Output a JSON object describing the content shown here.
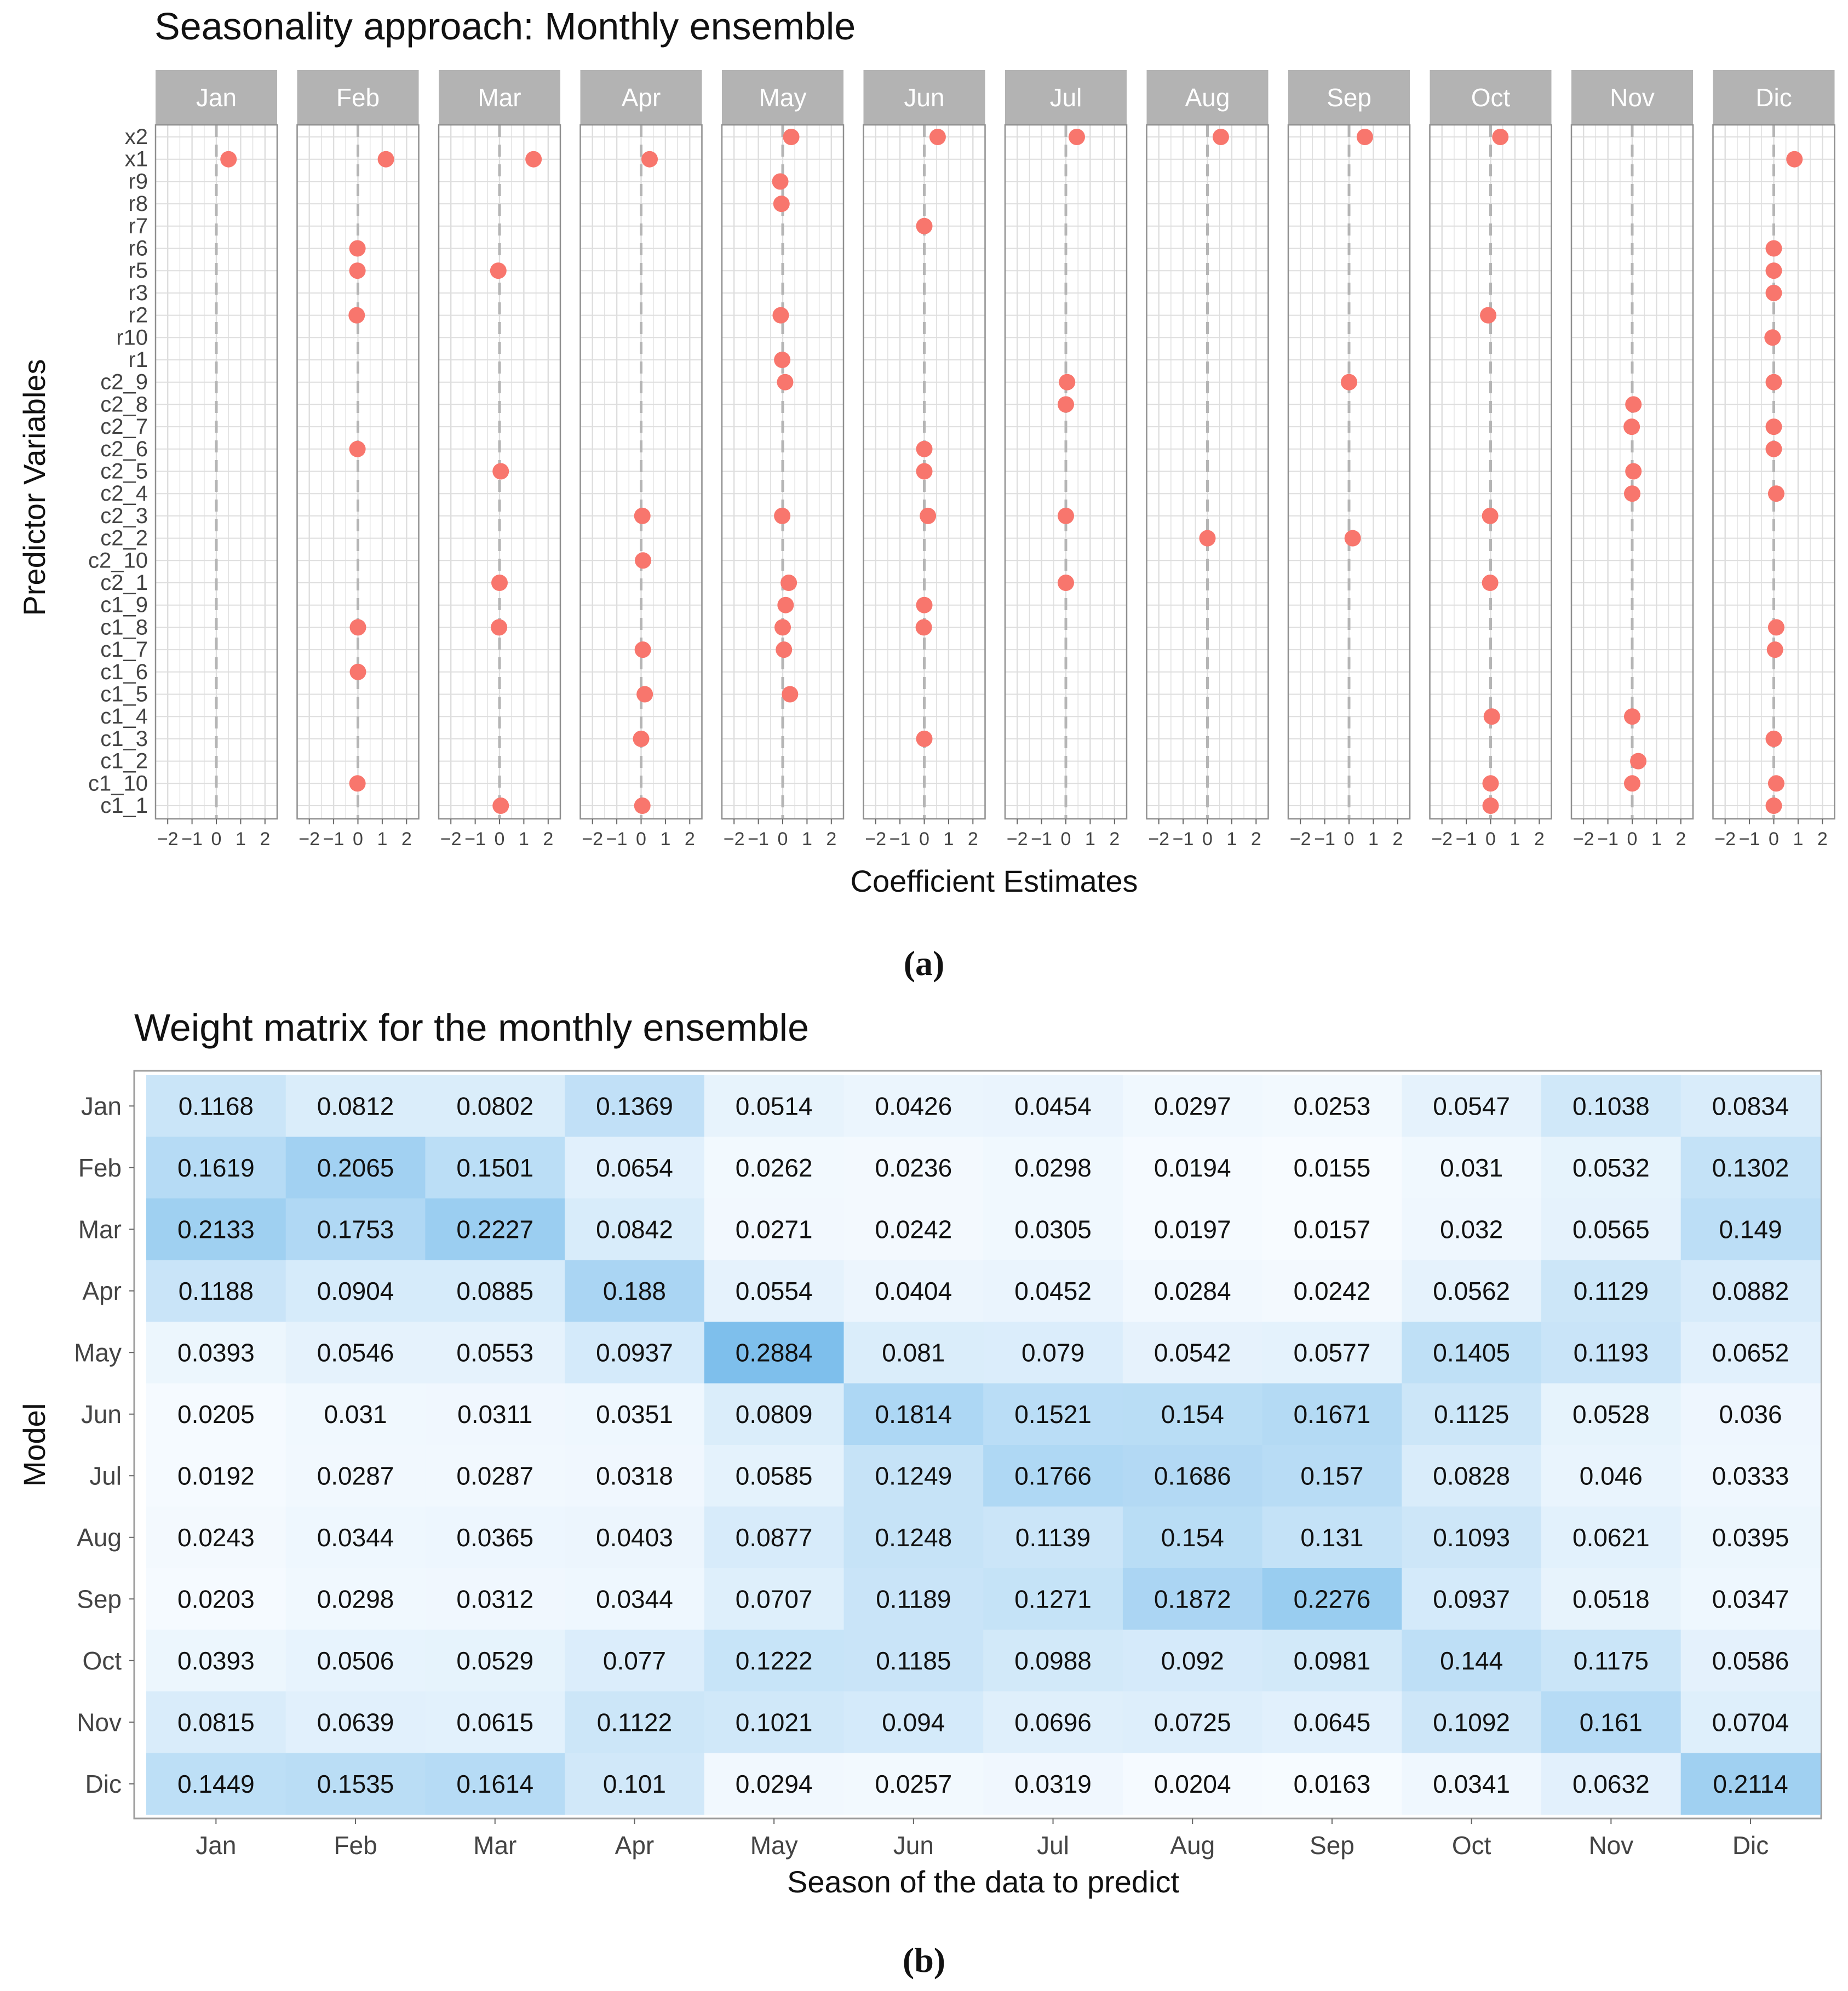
{
  "figure_a": {
    "caption_letter": "a",
    "chart_data": {
      "type": "scatter",
      "title": "Seasonality approach: Monthly ensemble",
      "xlabel": "Coefficient Estimates",
      "ylabel": "Predictor Variables",
      "xlim": [
        -2.5,
        2.5
      ],
      "xticks": [
        -2,
        -1,
        0,
        1,
        2
      ],
      "xtick_labels": [
        "−2",
        "−1",
        "0",
        "1",
        "2"
      ],
      "reference_line": 0,
      "variables": [
        "x2",
        "x1",
        "r9",
        "r8",
        "r7",
        "r6",
        "r5",
        "r3",
        "r2",
        "r10",
        "r1",
        "c2_9",
        "c2_8",
        "c2_7",
        "c2_6",
        "c2_5",
        "c2_4",
        "c2_3",
        "c2_2",
        "c2_10",
        "c2_1",
        "c1_9",
        "c1_8",
        "c1_7",
        "c1_6",
        "c1_5",
        "c1_4",
        "c1_3",
        "c1_2",
        "c1_10",
        "c1_1"
      ],
      "panels": [
        {
          "month": "Jan",
          "points": [
            {
              "var": "x1",
              "value": 0.5
            }
          ]
        },
        {
          "month": "Feb",
          "points": [
            {
              "var": "x1",
              "value": 1.15
            },
            {
              "var": "r6",
              "value": -0.02
            },
            {
              "var": "r5",
              "value": -0.02
            },
            {
              "var": "r2",
              "value": -0.05
            },
            {
              "var": "c2_6",
              "value": -0.02
            },
            {
              "var": "c1_8",
              "value": 0.0
            },
            {
              "var": "c1_6",
              "value": 0.0
            },
            {
              "var": "c1_10",
              "value": -0.02
            }
          ]
        },
        {
          "month": "Mar",
          "points": [
            {
              "var": "x1",
              "value": 1.4
            },
            {
              "var": "r5",
              "value": -0.05
            },
            {
              "var": "c2_5",
              "value": 0.05
            },
            {
              "var": "c2_1",
              "value": 0.0
            },
            {
              "var": "c1_8",
              "value": -0.02
            },
            {
              "var": "c1_1",
              "value": 0.05
            }
          ]
        },
        {
          "month": "Apr",
          "points": [
            {
              "var": "x1",
              "value": 0.35
            },
            {
              "var": "c2_3",
              "value": 0.05
            },
            {
              "var": "c2_10",
              "value": 0.08
            },
            {
              "var": "c1_7",
              "value": 0.07
            },
            {
              "var": "c1_5",
              "value": 0.15
            },
            {
              "var": "c1_3",
              "value": 0.0
            },
            {
              "var": "c1_1",
              "value": 0.05
            }
          ]
        },
        {
          "month": "May",
          "points": [
            {
              "var": "x2",
              "value": 0.35
            },
            {
              "var": "r9",
              "value": -0.1
            },
            {
              "var": "r8",
              "value": -0.05
            },
            {
              "var": "r2",
              "value": -0.08
            },
            {
              "var": "r1",
              "value": -0.02
            },
            {
              "var": "c2_9",
              "value": 0.1
            },
            {
              "var": "c2_3",
              "value": -0.02
            },
            {
              "var": "c2_1",
              "value": 0.25
            },
            {
              "var": "c1_9",
              "value": 0.12
            },
            {
              "var": "c1_8",
              "value": 0.0
            },
            {
              "var": "c1_7",
              "value": 0.05
            },
            {
              "var": "c1_5",
              "value": 0.3
            }
          ]
        },
        {
          "month": "Jun",
          "points": [
            {
              "var": "x2",
              "value": 0.55
            },
            {
              "var": "r7",
              "value": 0.0
            },
            {
              "var": "c2_6",
              "value": 0.0
            },
            {
              "var": "c2_5",
              "value": 0.0
            },
            {
              "var": "c2_3",
              "value": 0.15
            },
            {
              "var": "c1_9",
              "value": 0.0
            },
            {
              "var": "c1_8",
              "value": -0.02
            },
            {
              "var": "c1_3",
              "value": 0.0
            }
          ]
        },
        {
          "month": "Jul",
          "points": [
            {
              "var": "x2",
              "value": 0.45
            },
            {
              "var": "c2_9",
              "value": 0.05
            },
            {
              "var": "c2_8",
              "value": 0.0
            },
            {
              "var": "c2_3",
              "value": 0.0
            },
            {
              "var": "c2_1",
              "value": 0.0
            }
          ]
        },
        {
          "month": "Aug",
          "points": [
            {
              "var": "x2",
              "value": 0.55
            },
            {
              "var": "c2_2",
              "value": 0.0
            }
          ]
        },
        {
          "month": "Sep",
          "points": [
            {
              "var": "x2",
              "value": 0.65
            },
            {
              "var": "c2_9",
              "value": 0.0
            },
            {
              "var": "c2_2",
              "value": 0.15
            }
          ]
        },
        {
          "month": "Oct",
          "points": [
            {
              "var": "x2",
              "value": 0.4
            },
            {
              "var": "r2",
              "value": -0.1
            },
            {
              "var": "c2_3",
              "value": -0.02
            },
            {
              "var": "c2_1",
              "value": -0.02
            },
            {
              "var": "c1_4",
              "value": 0.05
            },
            {
              "var": "c1_10",
              "value": 0.0
            },
            {
              "var": "c1_1",
              "value": 0.0
            }
          ]
        },
        {
          "month": "Nov",
          "points": [
            {
              "var": "c2_8",
              "value": 0.05
            },
            {
              "var": "c2_7",
              "value": -0.02
            },
            {
              "var": "c2_5",
              "value": 0.05
            },
            {
              "var": "c2_4",
              "value": 0.0
            },
            {
              "var": "c1_4",
              "value": 0.0
            },
            {
              "var": "c1_2",
              "value": 0.25
            },
            {
              "var": "c1_10",
              "value": 0.0
            }
          ]
        },
        {
          "month": "Dic",
          "points": [
            {
              "var": "x1",
              "value": 0.85
            },
            {
              "var": "r6",
              "value": 0.0
            },
            {
              "var": "r5",
              "value": 0.0
            },
            {
              "var": "r3",
              "value": 0.0
            },
            {
              "var": "r10",
              "value": -0.05
            },
            {
              "var": "c2_9",
              "value": 0.0
            },
            {
              "var": "c2_7",
              "value": 0.0
            },
            {
              "var": "c2_6",
              "value": 0.0
            },
            {
              "var": "c2_4",
              "value": 0.1
            },
            {
              "var": "c1_8",
              "value": 0.1
            },
            {
              "var": "c1_7",
              "value": 0.05
            },
            {
              "var": "c1_3",
              "value": 0.0
            },
            {
              "var": "c1_10",
              "value": 0.1
            },
            {
              "var": "c1_1",
              "value": 0.0
            }
          ]
        }
      ],
      "point_color": "#f8766d",
      "strip_color": "#b3b3b3",
      "grid_color": "#dedede"
    }
  },
  "figure_b": {
    "caption_letter": "b",
    "chart_data": {
      "type": "heatmap",
      "title": "Weight matrix for the monthly ensemble",
      "xlabel": "Season of the data to predict",
      "ylabel": "Model",
      "columns": [
        "Jan",
        "Feb",
        "Mar",
        "Apr",
        "May",
        "Jun",
        "Jul",
        "Aug",
        "Sep",
        "Oct",
        "Nov",
        "Dic"
      ],
      "rows": [
        "Jan",
        "Feb",
        "Mar",
        "Apr",
        "May",
        "Jun",
        "Jul",
        "Aug",
        "Sep",
        "Oct",
        "Nov",
        "Dic"
      ],
      "values": [
        [
          "0.1168",
          "0.0812",
          "0.0802",
          "0.1369",
          "0.0514",
          "0.0426",
          "0.0454",
          "0.0297",
          "0.0253",
          "0.0547",
          "0.1038",
          "0.0834"
        ],
        [
          "0.1619",
          "0.2065",
          "0.1501",
          "0.0654",
          "0.0262",
          "0.0236",
          "0.0298",
          "0.0194",
          "0.0155",
          "0.031",
          "0.0532",
          "0.1302"
        ],
        [
          "0.2133",
          "0.1753",
          "0.2227",
          "0.0842",
          "0.0271",
          "0.0242",
          "0.0305",
          "0.0197",
          "0.0157",
          "0.032",
          "0.0565",
          "0.149"
        ],
        [
          "0.1188",
          "0.0904",
          "0.0885",
          "0.188",
          "0.0554",
          "0.0404",
          "0.0452",
          "0.0284",
          "0.0242",
          "0.0562",
          "0.1129",
          "0.0882"
        ],
        [
          "0.0393",
          "0.0546",
          "0.0553",
          "0.0937",
          "0.2884",
          "0.081",
          "0.079",
          "0.0542",
          "0.0577",
          "0.1405",
          "0.1193",
          "0.0652"
        ],
        [
          "0.0205",
          "0.031",
          "0.0311",
          "0.0351",
          "0.0809",
          "0.1814",
          "0.1521",
          "0.154",
          "0.1671",
          "0.1125",
          "0.0528",
          "0.036"
        ],
        [
          "0.0192",
          "0.0287",
          "0.0287",
          "0.0318",
          "0.0585",
          "0.1249",
          "0.1766",
          "0.1686",
          "0.157",
          "0.0828",
          "0.046",
          "0.0333"
        ],
        [
          "0.0243",
          "0.0344",
          "0.0365",
          "0.0403",
          "0.0877",
          "0.1248",
          "0.1139",
          "0.154",
          "0.131",
          "0.1093",
          "0.0621",
          "0.0395"
        ],
        [
          "0.0203",
          "0.0298",
          "0.0312",
          "0.0344",
          "0.0707",
          "0.1189",
          "0.1271",
          "0.1872",
          "0.2276",
          "0.0937",
          "0.0518",
          "0.0347"
        ],
        [
          "0.0393",
          "0.0506",
          "0.0529",
          "0.077",
          "0.1222",
          "0.1185",
          "0.0988",
          "0.092",
          "0.0981",
          "0.144",
          "0.1175",
          "0.0586"
        ],
        [
          "0.0815",
          "0.0639",
          "0.0615",
          "0.1122",
          "0.1021",
          "0.094",
          "0.0696",
          "0.0725",
          "0.0645",
          "0.1092",
          "0.161",
          "0.0704"
        ],
        [
          "0.1449",
          "0.1535",
          "0.1614",
          "0.101",
          "0.0294",
          "0.0257",
          "0.0319",
          "0.0204",
          "0.0163",
          "0.0341",
          "0.0632",
          "0.2114"
        ]
      ],
      "color_low": "#f7fbff",
      "color_high": "#7dbfec",
      "value_range": [
        0.015,
        0.29
      ]
    }
  }
}
